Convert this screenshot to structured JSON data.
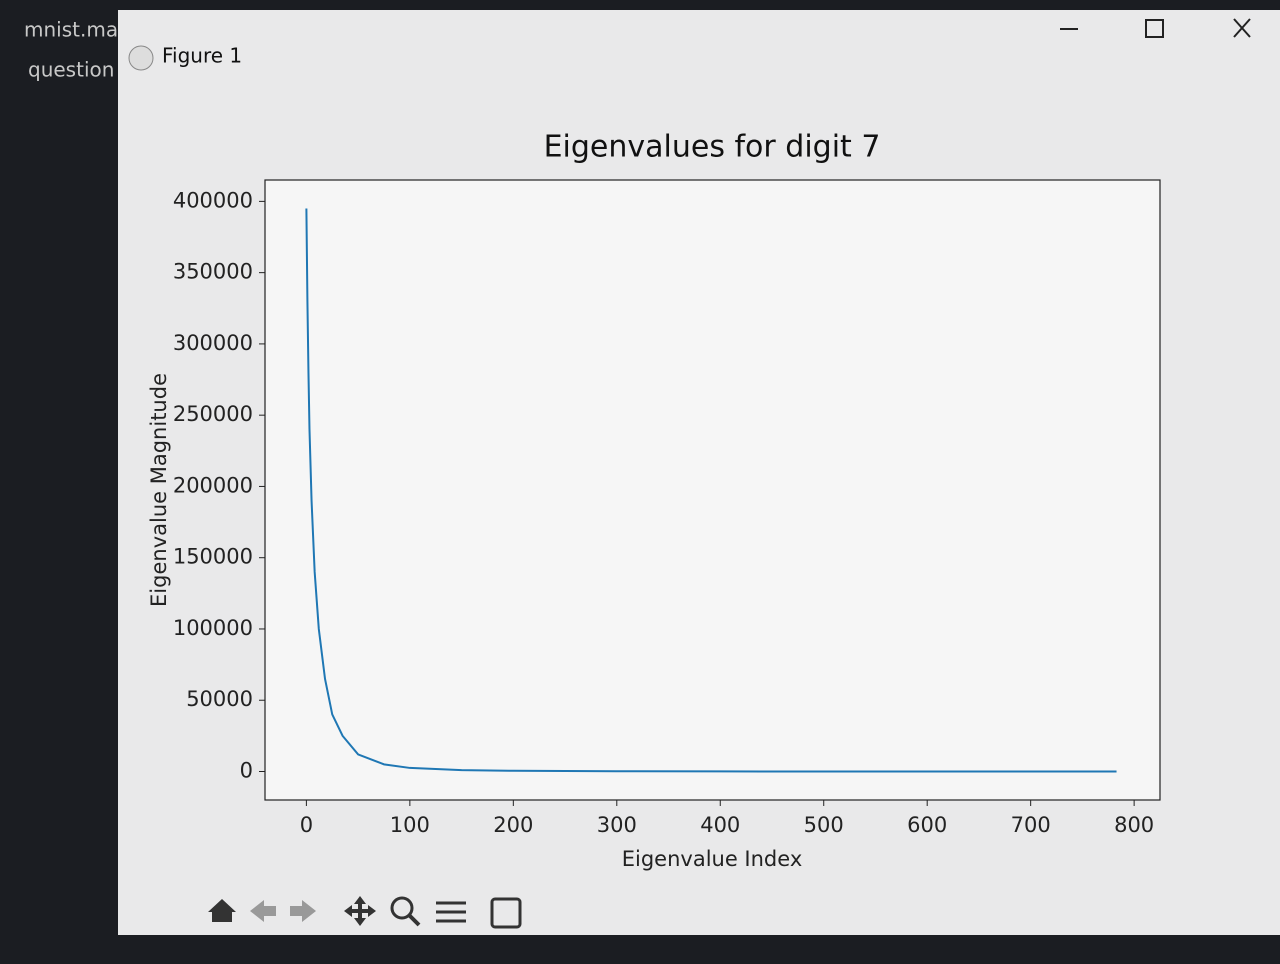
{
  "sidebar": {
    "files": [
      "mnist.mat",
      "question"
    ]
  },
  "window": {
    "title": "Figure 1"
  },
  "chart_data": {
    "type": "line",
    "title": "Eigenvalues for digit 7",
    "x_label": "Eigenvalue Index",
    "y_label": "Eigenvalue Magnitude",
    "x": [
      0,
      1,
      2,
      3,
      5,
      8,
      12,
      18,
      25,
      35,
      50,
      75,
      100,
      150,
      200,
      300,
      400,
      500,
      600,
      700,
      783
    ],
    "values": [
      395000,
      330000,
      280000,
      240000,
      190000,
      140000,
      100000,
      65000,
      40000,
      25000,
      12000,
      5000,
      2500,
      1000,
      500,
      150,
      50,
      10,
      0,
      0,
      0
    ],
    "color": "#1f77b4",
    "xlim": [
      -40,
      825
    ],
    "ylim": [
      -20000,
      415000
    ],
    "xticks": [
      0,
      100,
      200,
      300,
      400,
      500,
      600,
      700,
      800
    ],
    "yticks": [
      0,
      50000,
      100000,
      150000,
      200000,
      250000,
      300000,
      350000,
      400000
    ],
    "grid": false
  }
}
